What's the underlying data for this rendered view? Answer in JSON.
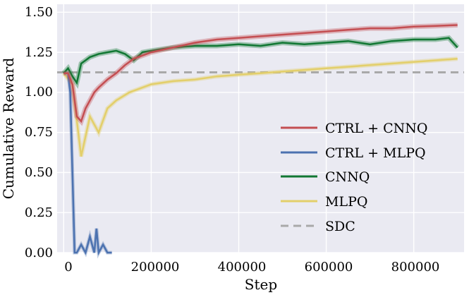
{
  "chart_data": {
    "type": "line",
    "xlabel": "Step",
    "ylabel": "Cumulative Reward",
    "xlim": [
      -15000,
      915000
    ],
    "ylim": [
      0.0,
      1.55
    ],
    "xticks": [
      0,
      200000,
      400000,
      600000,
      800000
    ],
    "xtick_labels": [
      "0",
      "200000",
      "400000",
      "600000",
      "800000"
    ],
    "yticks": [
      0.0,
      0.25,
      0.5,
      0.75,
      1.0,
      1.25,
      1.5
    ],
    "ytick_labels": [
      "0.00",
      "0.25",
      "0.50",
      "0.75",
      "1.00",
      "1.25",
      "1.50"
    ],
    "grid": true,
    "legend_position": "center-right",
    "background": "#eaeaf2",
    "series": [
      {
        "name": "CTRL + CNNQ",
        "color": "#c44e52",
        "x": [
          0,
          10000,
          20000,
          30000,
          40000,
          50000,
          60000,
          70000,
          80000,
          100000,
          120000,
          140000,
          160000,
          180000,
          200000,
          250000,
          300000,
          350000,
          400000,
          450000,
          500000,
          550000,
          600000,
          650000,
          700000,
          750000,
          800000,
          850000,
          900000
        ],
        "y": [
          1.12,
          1.12,
          1.05,
          0.85,
          0.82,
          0.9,
          0.95,
          1.0,
          1.03,
          1.08,
          1.12,
          1.17,
          1.21,
          1.23,
          1.25,
          1.28,
          1.31,
          1.33,
          1.34,
          1.35,
          1.36,
          1.37,
          1.38,
          1.39,
          1.4,
          1.4,
          1.41,
          1.415,
          1.42
        ]
      },
      {
        "name": "CTRL + MLPQ",
        "color": "#4c72b0",
        "x": [
          0,
          10000,
          15000,
          20000,
          25000,
          30000,
          40000,
          50000,
          60000,
          70000,
          75000,
          80000,
          90000,
          100000,
          110000
        ],
        "y": [
          1.12,
          1.12,
          1.0,
          0.5,
          0.0,
          0.0,
          0.05,
          0.0,
          0.1,
          0.0,
          0.15,
          0.0,
          0.05,
          0.0,
          0.0
        ]
      },
      {
        "name": "CNNQ",
        "color": "#117733",
        "x": [
          0,
          10000,
          20000,
          30000,
          40000,
          50000,
          60000,
          80000,
          100000,
          120000,
          140000,
          160000,
          180000,
          200000,
          250000,
          300000,
          350000,
          400000,
          450000,
          500000,
          550000,
          600000,
          650000,
          700000,
          750000,
          800000,
          850000,
          880000,
          900000
        ],
        "y": [
          1.12,
          1.15,
          1.1,
          1.06,
          1.18,
          1.2,
          1.22,
          1.24,
          1.25,
          1.26,
          1.24,
          1.2,
          1.25,
          1.26,
          1.28,
          1.29,
          1.29,
          1.3,
          1.29,
          1.31,
          1.3,
          1.31,
          1.32,
          1.3,
          1.32,
          1.33,
          1.33,
          1.34,
          1.28
        ]
      },
      {
        "name": "MLPQ",
        "color": "#e3cf6a",
        "x": [
          0,
          20000,
          40000,
          60000,
          80000,
          100000,
          120000,
          150000,
          200000,
          250000,
          300000,
          350000,
          400000,
          450000,
          500000,
          550000,
          600000,
          650000,
          700000,
          750000,
          800000,
          850000,
          900000
        ],
        "y": [
          1.12,
          1.05,
          0.6,
          0.85,
          0.75,
          0.9,
          0.95,
          1.0,
          1.05,
          1.07,
          1.08,
          1.1,
          1.11,
          1.12,
          1.13,
          1.14,
          1.15,
          1.16,
          1.17,
          1.18,
          1.19,
          1.2,
          1.21
        ]
      },
      {
        "name": "SDC",
        "color": "#a9a9a9",
        "dashed": true,
        "x": [
          -15000,
          915000
        ],
        "y": [
          1.125,
          1.125
        ]
      }
    ]
  }
}
